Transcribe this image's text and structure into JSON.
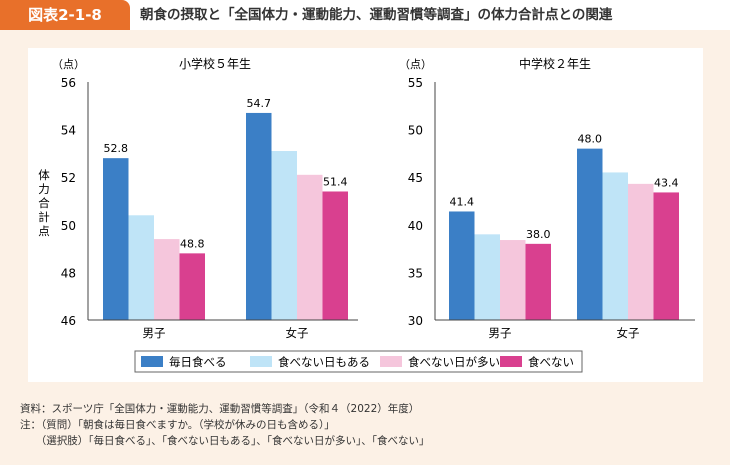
{
  "header": {
    "badge": "図表2-1-8",
    "title": "朝食の摂取と「全国体力・運動能力、運動習慣等調査」の体力合計点との関連"
  },
  "colors": [
    "#3b7fc6",
    "#bfe4f7",
    "#f5c6dc",
    "#d9408f"
  ],
  "chart_data": [
    {
      "type": "bar",
      "title": "小学校５年生",
      "ylabel": "体力合計点",
      "yunit": "（点）",
      "ylim": [
        46,
        56
      ],
      "yticks": [
        46,
        48,
        50,
        52,
        54,
        56
      ],
      "categories": [
        "男子",
        "女子"
      ],
      "series": [
        {
          "name": "毎日食べる",
          "values": [
            52.8,
            54.7
          ]
        },
        {
          "name": "食べない日もある",
          "values": [
            50.4,
            53.1
          ]
        },
        {
          "name": "食べない日が多い",
          "values": [
            49.4,
            52.1
          ]
        },
        {
          "name": "食べない",
          "values": [
            48.8,
            51.4
          ]
        }
      ],
      "labels": {
        "0": [
          "52.8",
          "54.7"
        ],
        "3": [
          "48.8",
          "51.4"
        ]
      }
    },
    {
      "type": "bar",
      "title": "中学校２年生",
      "ylabel": "",
      "yunit": "（点）",
      "ylim": [
        30,
        55
      ],
      "yticks": [
        30,
        35,
        40,
        45,
        50,
        55
      ],
      "categories": [
        "男子",
        "女子"
      ],
      "series": [
        {
          "name": "毎日食べる",
          "values": [
            41.4,
            48.0
          ]
        },
        {
          "name": "食べない日もある",
          "values": [
            39.0,
            45.5
          ]
        },
        {
          "name": "食べない日が多い",
          "values": [
            38.4,
            44.3
          ]
        },
        {
          "name": "食べない",
          "values": [
            38.0,
            43.4
          ]
        }
      ],
      "labels": {
        "0": [
          "41.4",
          "48.0"
        ],
        "3": [
          "38.0",
          "43.4"
        ]
      }
    }
  ],
  "legend": [
    "毎日食べる",
    "食べない日もある",
    "食べない日が多い",
    "食べない"
  ],
  "notes": [
    "資料：スポーツ庁「全国体力・運動能力、運動習慣等調査」（令和４（2022）年度）",
    "注：（質問）「朝食は毎日食べますか。（学校が休みの日も含める）」",
    "　　（選択肢）「毎日食べる」、「食べない日もある」、「食べない日が多い」、「食べない」"
  ]
}
